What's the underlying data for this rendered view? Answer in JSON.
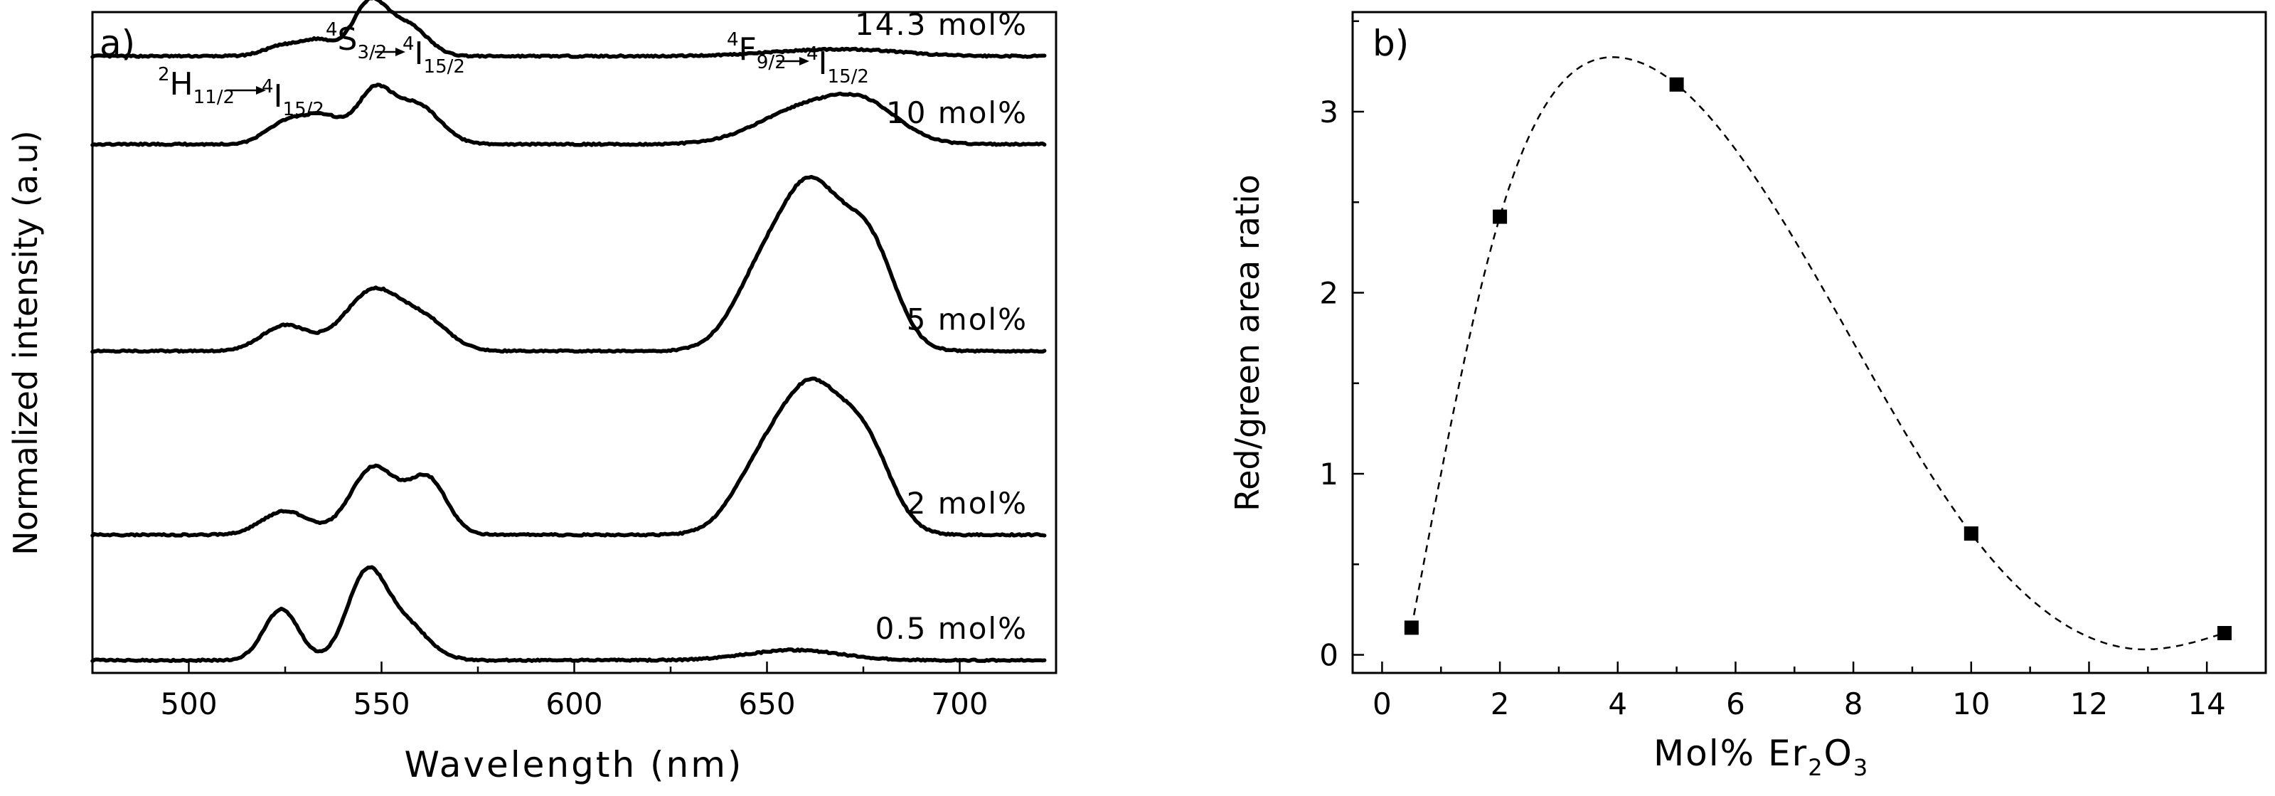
{
  "chart_data": [
    {
      "panel": "a)",
      "type": "line",
      "title": "",
      "xlabel": "Wavelength (nm)",
      "ylabel": "Normalized intensity (a.u)",
      "xlim": [
        475,
        725
      ],
      "xticks": [
        "500",
        "550",
        "600",
        "650",
        "700"
      ],
      "transitions": [
        {
          "upper": "H",
          "upper_sup": "2",
          "upper_sub": "11/2",
          "lower": "I",
          "lower_sup": "4",
          "lower_sub": "15/2",
          "wavelength": 525
        },
        {
          "upper": "S",
          "upper_sup": "4",
          "upper_sub": "3/2",
          "lower": "I",
          "lower_sup": "4",
          "lower_sub": "15/2",
          "wavelength": 548
        },
        {
          "upper": "F",
          "upper_sup": "4",
          "upper_sub": "9/2",
          "lower": "I",
          "lower_sup": "4",
          "lower_sub": "15/2",
          "wavelength": 662
        }
      ],
      "series": [
        {
          "name": "14.3 mol%",
          "baseline": 4.43,
          "peaks": [
            [
              525,
              0.13,
              5
            ],
            [
              534,
              0.17,
              4
            ],
            [
              547,
              0.63,
              4.5
            ],
            [
              557,
              0.35,
              5
            ],
            [
              660,
              0.05,
              14
            ],
            [
              676,
              0.05,
              12
            ]
          ]
        },
        {
          "name": "10 mol%",
          "baseline": 3.39,
          "peaks": [
            [
              525,
              0.25,
              5
            ],
            [
              535,
              0.32,
              5
            ],
            [
              548,
              0.59,
              4.5
            ],
            [
              559,
              0.47,
              6
            ],
            [
              660,
              0.42,
              12
            ],
            [
              676,
              0.37,
              9
            ]
          ]
        },
        {
          "name": "5 mol%",
          "baseline": 0.95,
          "peaks": [
            [
              525,
              0.3,
              6
            ],
            [
              548,
              0.72,
              7.5
            ],
            [
              562,
              0.3,
              6
            ],
            [
              650,
              1.0,
              8
            ],
            [
              662,
              1.55,
              7
            ],
            [
              676,
              1.3,
              7
            ]
          ]
        },
        {
          "name": "2 mol%",
          "baseline": -1.22,
          "peaks": [
            [
              525,
              0.28,
              6
            ],
            [
              548,
              0.8,
              6
            ],
            [
              562,
              0.65,
              5
            ],
            [
              650,
              0.9,
              8
            ],
            [
              662,
              1.35,
              7
            ],
            [
              675,
              1.1,
              7
            ]
          ]
        },
        {
          "name": "0.5 mol%",
          "baseline": -2.7,
          "peaks": [
            [
              524,
              0.6,
              4.5
            ],
            [
              546,
              0.98,
              5
            ],
            [
              556,
              0.42,
              6
            ],
            [
              657,
              0.12,
              12
            ]
          ]
        }
      ],
      "ylim": [
        -2.85,
        4.95
      ]
    },
    {
      "panel": "b)",
      "type": "scatter",
      "title": "",
      "xlabel": "Mol% Er",
      "xlabel_sub1": "2",
      "xlabel_mid": "O",
      "xlabel_sub2": "3",
      "ylabel": "Red/green area ratio",
      "xlim": [
        -0.5,
        15
      ],
      "ylim": [
        -0.1,
        3.55
      ],
      "xticks": [
        "0",
        "2",
        "4",
        "6",
        "8",
        "10",
        "12",
        "14"
      ],
      "yticks": [
        "0",
        "1",
        "2",
        "3"
      ],
      "x": [
        0.5,
        2,
        5,
        10,
        14.3
      ],
      "y": [
        0.15,
        2.42,
        3.15,
        0.67,
        0.12
      ],
      "fit_curve": "dashed spline through points, max ~3.3 near 4 mol%, min ~0.03 near 13 mol%"
    }
  ]
}
